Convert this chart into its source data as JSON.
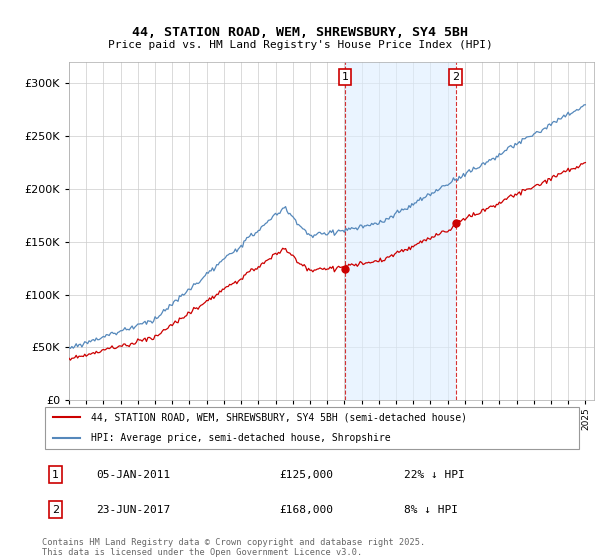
{
  "title1": "44, STATION ROAD, WEM, SHREWSBURY, SY4 5BH",
  "title2": "Price paid vs. HM Land Registry's House Price Index (HPI)",
  "legend_line1": "44, STATION ROAD, WEM, SHREWSBURY, SY4 5BH (semi-detached house)",
  "legend_line2": "HPI: Average price, semi-detached house, Shropshire",
  "note1": "05-JAN-2011",
  "note1_price": "£125,000",
  "note1_hpi": "22% ↓ HPI",
  "note2": "23-JUN-2017",
  "note2_price": "£168,000",
  "note2_hpi": "8% ↓ HPI",
  "copyright": "Contains HM Land Registry data © Crown copyright and database right 2025.\nThis data is licensed under the Open Government Licence v3.0.",
  "red_color": "#cc0000",
  "blue_color": "#5588bb",
  "blue_fill": "#ddeeff",
  "ylim_min": 0,
  "ylim_max": 320000,
  "purchase1_year": 2011.04,
  "purchase1_price": 125000,
  "purchase2_year": 2017.47,
  "purchase2_price": 168000
}
